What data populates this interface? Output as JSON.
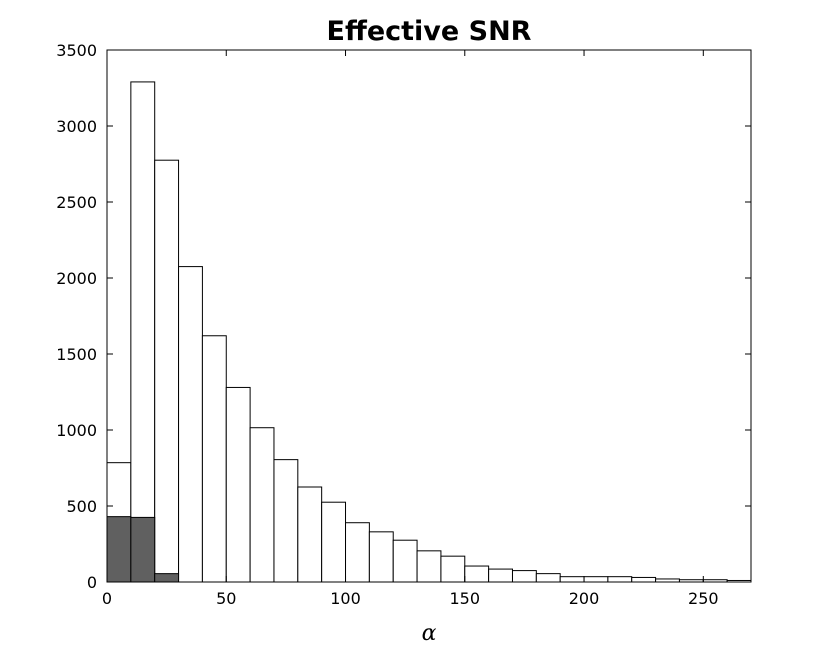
{
  "chart_data": {
    "type": "bar",
    "title": "Effective SNR",
    "xlabel": "α",
    "ylabel": "",
    "xlim": [
      0,
      270
    ],
    "ylim": [
      0,
      3500
    ],
    "bin_width": 10,
    "xticks": [
      0,
      50,
      100,
      150,
      200,
      250
    ],
    "yticks": [
      0,
      500,
      1000,
      1500,
      2000,
      2500,
      3000,
      3500
    ],
    "grid": false,
    "series": [
      {
        "color": "#ffffff",
        "bin_starts": [
          0,
          10,
          20,
          30,
          40,
          50,
          60,
          70,
          80,
          90,
          100,
          110,
          120,
          130,
          140,
          150,
          160,
          170,
          180,
          190,
          200,
          210,
          220,
          230,
          240,
          250,
          260
        ],
        "values": [
          785,
          3290,
          2775,
          2075,
          1620,
          1280,
          1015,
          805,
          625,
          525,
          390,
          330,
          275,
          205,
          170,
          105,
          85,
          75,
          55,
          35,
          35,
          35,
          30,
          20,
          15,
          15,
          10
        ]
      },
      {
        "color": "#606060",
        "bin_starts": [
          0,
          10,
          20
        ],
        "values": [
          430,
          425,
          55
        ]
      }
    ]
  }
}
